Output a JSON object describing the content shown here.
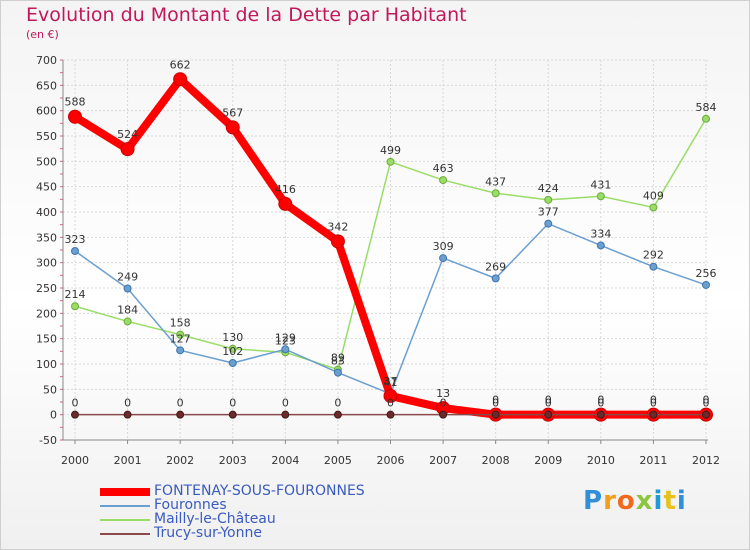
{
  "title": "Evolution du Montant de la Dette par Habitant",
  "subtitle": "(en €)",
  "logo": {
    "text": "Proxiti",
    "colors": [
      "#2f8fd8",
      "#f2a01c",
      "#ef6a1c",
      "#8cc63f",
      "#1e9bd7",
      "#e8c21a",
      "#2f8fd8"
    ]
  },
  "chart_data": {
    "type": "line",
    "x": [
      "2000",
      "2001",
      "2002",
      "2003",
      "2004",
      "2005",
      "2006",
      "2007",
      "2008",
      "2009",
      "2010",
      "2011",
      "2012"
    ],
    "ylim": [
      -50,
      700
    ],
    "yticks": [
      "-50",
      "0",
      "50",
      "100",
      "150",
      "200",
      "250",
      "300",
      "350",
      "400",
      "450",
      "500",
      "550",
      "600",
      "650",
      "700"
    ],
    "grid": true,
    "legend_position": "bottom-left",
    "series": [
      {
        "name": "FONTENAY-SOUS-FOURONNES",
        "color": "#ff0000",
        "values": [
          588,
          524,
          662,
          567,
          416,
          342,
          37,
          13,
          0,
          0,
          0,
          0,
          0
        ],
        "labels": [
          "588",
          "524",
          "662",
          "567",
          "416",
          "342",
          "37",
          "13",
          "0",
          "0",
          "0",
          "0",
          "0"
        ]
      },
      {
        "name": "Fouronnes",
        "color": "#6a9fd0",
        "values": [
          323,
          249,
          127,
          102,
          129,
          83,
          41,
          309,
          269,
          377,
          334,
          292,
          256
        ],
        "labels": [
          "323",
          "249",
          "127",
          "102",
          "129",
          "83",
          "41",
          "309",
          "269",
          "377",
          "334",
          "292",
          "256"
        ]
      },
      {
        "name": "Mailly-le-Château",
        "color": "#99dd66",
        "values": [
          214,
          184,
          158,
          130,
          123,
          89,
          499,
          463,
          437,
          424,
          431,
          409,
          584
        ],
        "labels": [
          "214",
          "184",
          "158",
          "130",
          "123",
          "89",
          "499",
          "463",
          "437",
          "424",
          "431",
          "409",
          "584"
        ]
      },
      {
        "name": "Trucy-sur-Yonne",
        "color": "#8b4a4a",
        "values": [
          0,
          0,
          0,
          0,
          0,
          0,
          0,
          0,
          0,
          0,
          0,
          0,
          0
        ],
        "labels": [
          "0",
          "0",
          "0",
          "0",
          "0",
          "0",
          "0",
          "0",
          "0",
          "0",
          "0",
          "0",
          "0"
        ]
      }
    ]
  }
}
